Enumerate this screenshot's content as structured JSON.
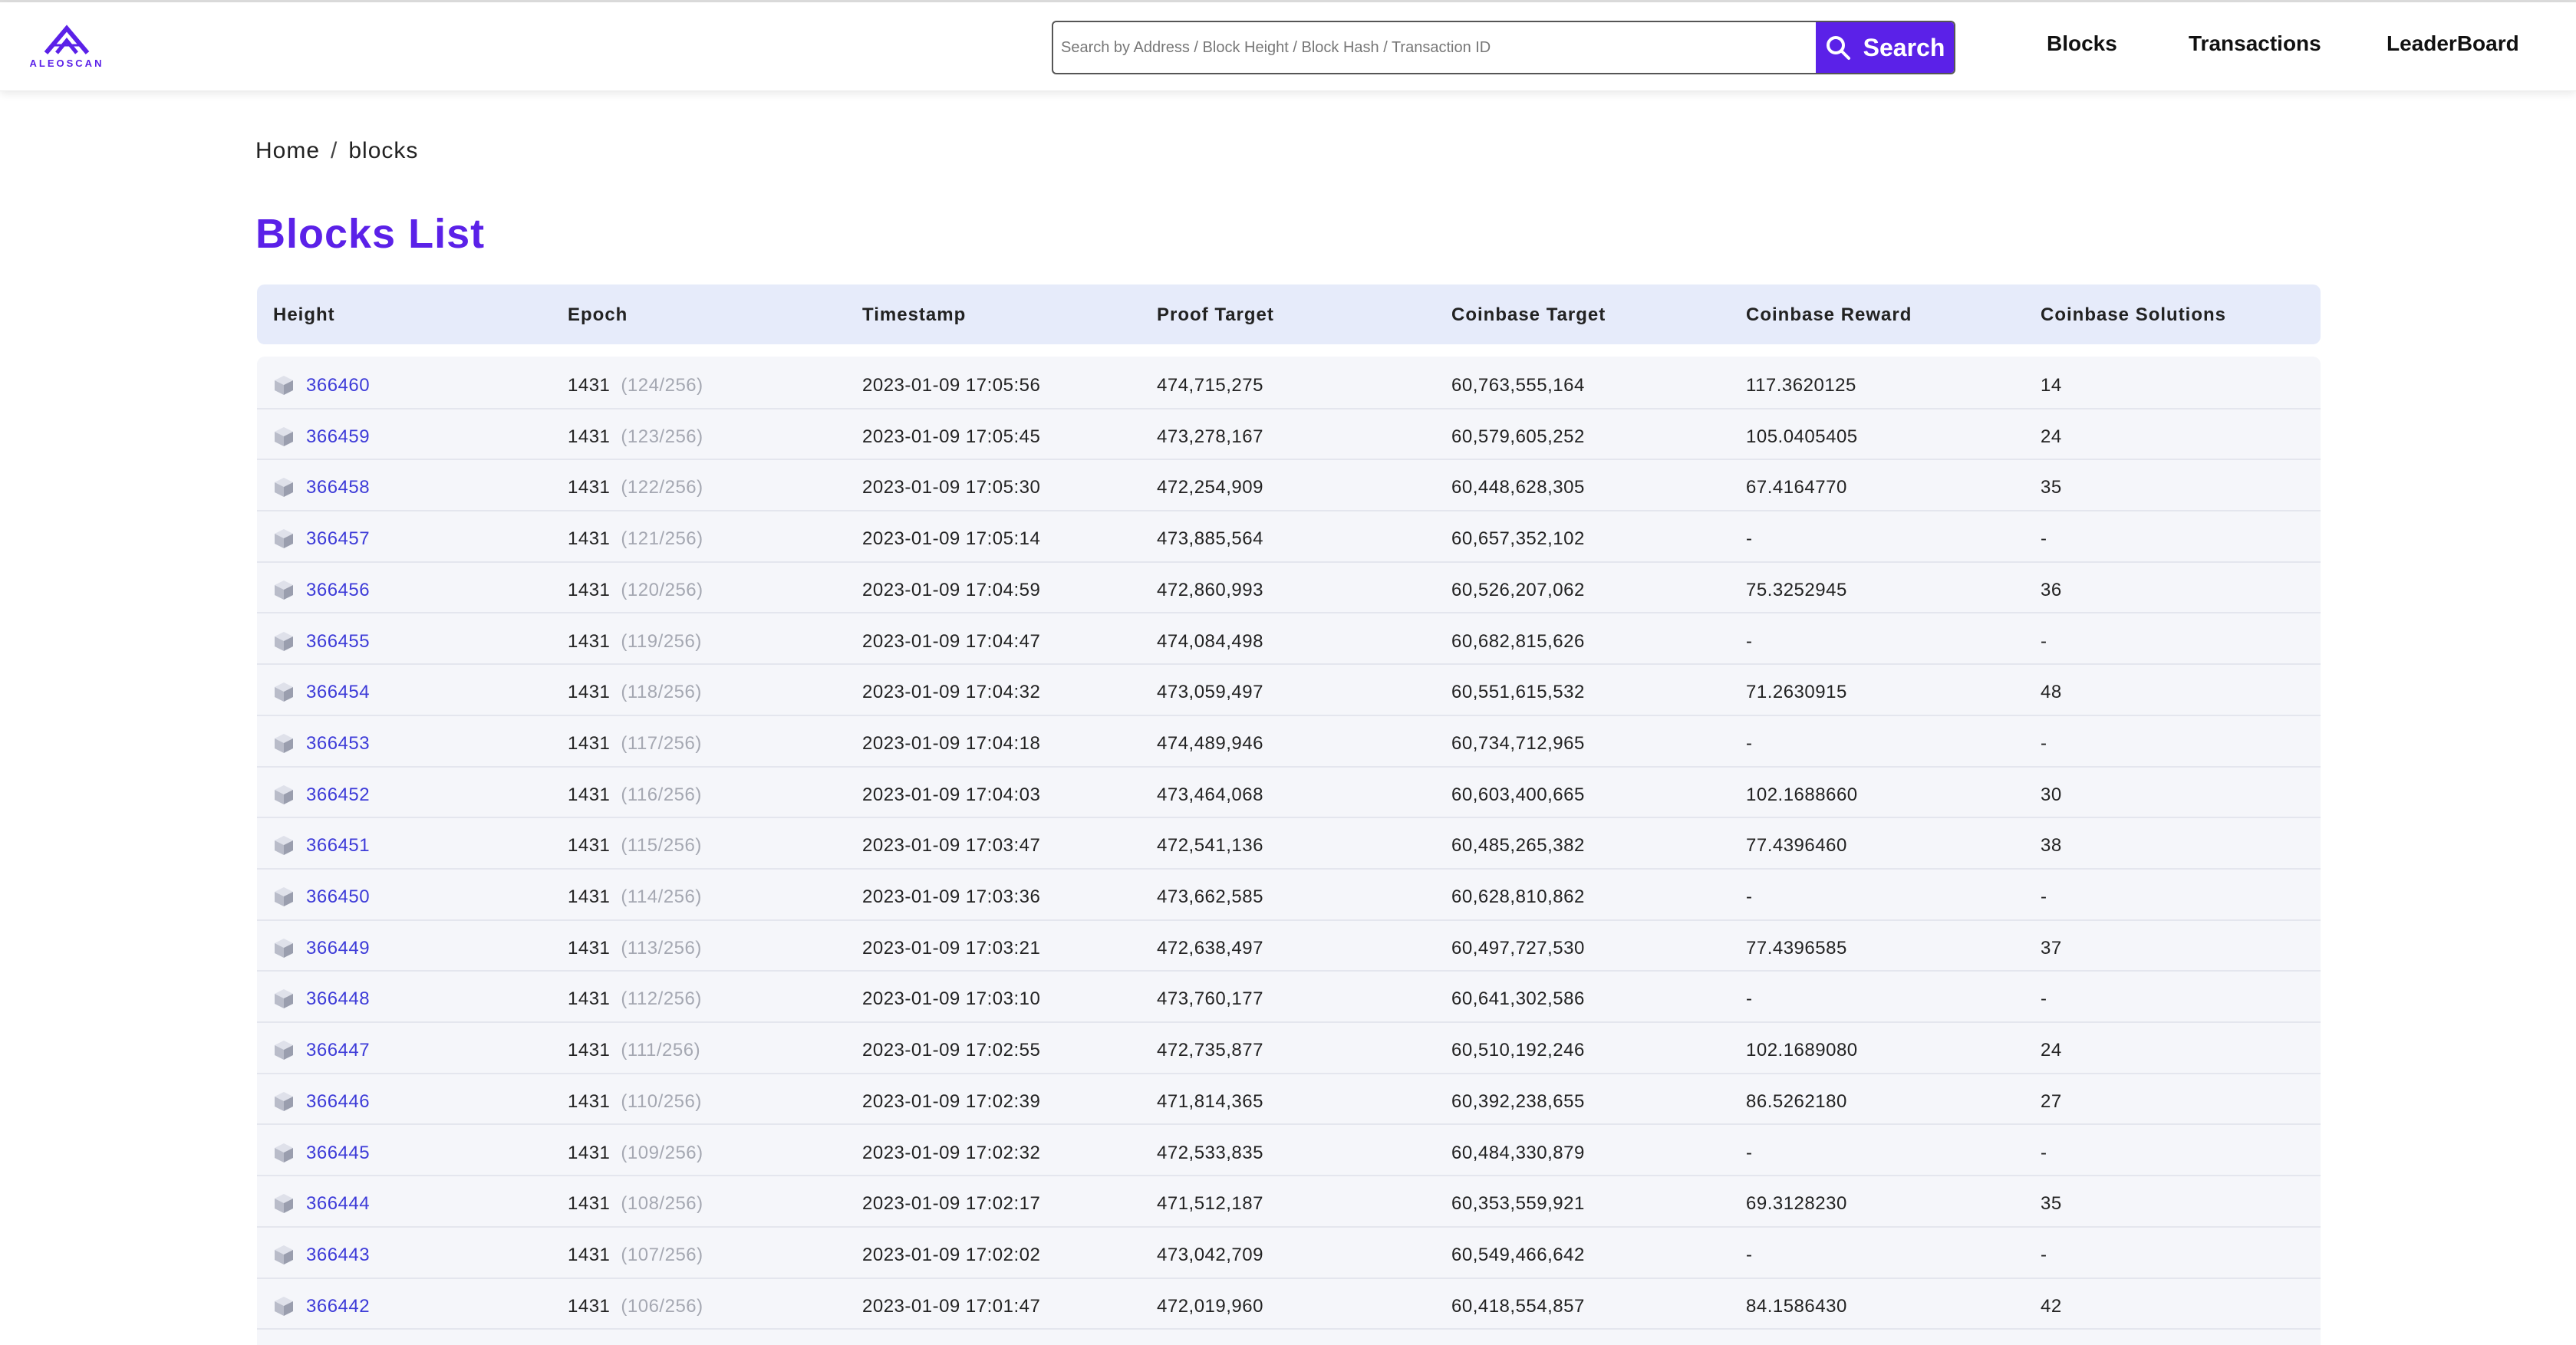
{
  "brand": {
    "logo_text": "ALEOSCAN",
    "accent_color": "#5b21e8"
  },
  "header": {
    "search": {
      "placeholder": "Search by Address / Block Height / Block Hash / Transaction ID",
      "button_label": "Search",
      "button_icon": "search-icon"
    },
    "nav": [
      {
        "label": "Blocks"
      },
      {
        "label": "Transactions"
      },
      {
        "label": "LeaderBoard"
      }
    ]
  },
  "breadcrumb": {
    "home": "Home",
    "separator": "/",
    "current": "blocks"
  },
  "page_title": "Blocks List",
  "table": {
    "columns": [
      "Height",
      "Epoch",
      "Timestamp",
      "Proof Target",
      "Coinbase Target",
      "Coinbase Reward",
      "Coinbase Solutions"
    ],
    "row_icon": "cube-icon",
    "rows": [
      {
        "height": "366460",
        "epoch": "1431",
        "epoch_sub": "(124/256)",
        "timestamp": "2023-01-09 17:05:56",
        "proof_target": "474,715,275",
        "coinbase_target": "60,763,555,164",
        "reward": "117.3620125",
        "solutions": "14"
      },
      {
        "height": "366459",
        "epoch": "1431",
        "epoch_sub": "(123/256)",
        "timestamp": "2023-01-09 17:05:45",
        "proof_target": "473,278,167",
        "coinbase_target": "60,579,605,252",
        "reward": "105.0405405",
        "solutions": "24"
      },
      {
        "height": "366458",
        "epoch": "1431",
        "epoch_sub": "(122/256)",
        "timestamp": "2023-01-09 17:05:30",
        "proof_target": "472,254,909",
        "coinbase_target": "60,448,628,305",
        "reward": "67.4164770",
        "solutions": "35"
      },
      {
        "height": "366457",
        "epoch": "1431",
        "epoch_sub": "(121/256)",
        "timestamp": "2023-01-09 17:05:14",
        "proof_target": "473,885,564",
        "coinbase_target": "60,657,352,102",
        "reward": "-",
        "solutions": "-"
      },
      {
        "height": "366456",
        "epoch": "1431",
        "epoch_sub": "(120/256)",
        "timestamp": "2023-01-09 17:04:59",
        "proof_target": "472,860,993",
        "coinbase_target": "60,526,207,062",
        "reward": "75.3252945",
        "solutions": "36"
      },
      {
        "height": "366455",
        "epoch": "1431",
        "epoch_sub": "(119/256)",
        "timestamp": "2023-01-09 17:04:47",
        "proof_target": "474,084,498",
        "coinbase_target": "60,682,815,626",
        "reward": "-",
        "solutions": "-"
      },
      {
        "height": "366454",
        "epoch": "1431",
        "epoch_sub": "(118/256)",
        "timestamp": "2023-01-09 17:04:32",
        "proof_target": "473,059,497",
        "coinbase_target": "60,551,615,532",
        "reward": "71.2630915",
        "solutions": "48"
      },
      {
        "height": "366453",
        "epoch": "1431",
        "epoch_sub": "(117/256)",
        "timestamp": "2023-01-09 17:04:18",
        "proof_target": "474,489,946",
        "coinbase_target": "60,734,712,965",
        "reward": "-",
        "solutions": "-"
      },
      {
        "height": "366452",
        "epoch": "1431",
        "epoch_sub": "(116/256)",
        "timestamp": "2023-01-09 17:04:03",
        "proof_target": "473,464,068",
        "coinbase_target": "60,603,400,665",
        "reward": "102.1688660",
        "solutions": "30"
      },
      {
        "height": "366451",
        "epoch": "1431",
        "epoch_sub": "(115/256)",
        "timestamp": "2023-01-09 17:03:47",
        "proof_target": "472,541,136",
        "coinbase_target": "60,485,265,382",
        "reward": "77.4396460",
        "solutions": "38"
      },
      {
        "height": "366450",
        "epoch": "1431",
        "epoch_sub": "(114/256)",
        "timestamp": "2023-01-09 17:03:36",
        "proof_target": "473,662,585",
        "coinbase_target": "60,628,810,862",
        "reward": "-",
        "solutions": "-"
      },
      {
        "height": "366449",
        "epoch": "1431",
        "epoch_sub": "(113/256)",
        "timestamp": "2023-01-09 17:03:21",
        "proof_target": "472,638,497",
        "coinbase_target": "60,497,727,530",
        "reward": "77.4396585",
        "solutions": "37"
      },
      {
        "height": "366448",
        "epoch": "1431",
        "epoch_sub": "(112/256)",
        "timestamp": "2023-01-09 17:03:10",
        "proof_target": "473,760,177",
        "coinbase_target": "60,641,302,586",
        "reward": "-",
        "solutions": "-"
      },
      {
        "height": "366447",
        "epoch": "1431",
        "epoch_sub": "(111/256)",
        "timestamp": "2023-01-09 17:02:55",
        "proof_target": "472,735,877",
        "coinbase_target": "60,510,192,246",
        "reward": "102.1689080",
        "solutions": "24"
      },
      {
        "height": "366446",
        "epoch": "1431",
        "epoch_sub": "(110/256)",
        "timestamp": "2023-01-09 17:02:39",
        "proof_target": "471,814,365",
        "coinbase_target": "60,392,238,655",
        "reward": "86.5262180",
        "solutions": "27"
      },
      {
        "height": "366445",
        "epoch": "1431",
        "epoch_sub": "(109/256)",
        "timestamp": "2023-01-09 17:02:32",
        "proof_target": "472,533,835",
        "coinbase_target": "60,484,330,879",
        "reward": "-",
        "solutions": "-"
      },
      {
        "height": "366444",
        "epoch": "1431",
        "epoch_sub": "(108/256)",
        "timestamp": "2023-01-09 17:02:17",
        "proof_target": "471,512,187",
        "coinbase_target": "60,353,559,921",
        "reward": "69.3128230",
        "solutions": "35"
      },
      {
        "height": "366443",
        "epoch": "1431",
        "epoch_sub": "(107/256)",
        "timestamp": "2023-01-09 17:02:02",
        "proof_target": "473,042,709",
        "coinbase_target": "60,549,466,642",
        "reward": "-",
        "solutions": "-"
      },
      {
        "height": "366442",
        "epoch": "1431",
        "epoch_sub": "(106/256)",
        "timestamp": "2023-01-09 17:01:47",
        "proof_target": "472,019,960",
        "coinbase_target": "60,418,554,857",
        "reward": "84.1586430",
        "solutions": "42"
      }
    ]
  }
}
